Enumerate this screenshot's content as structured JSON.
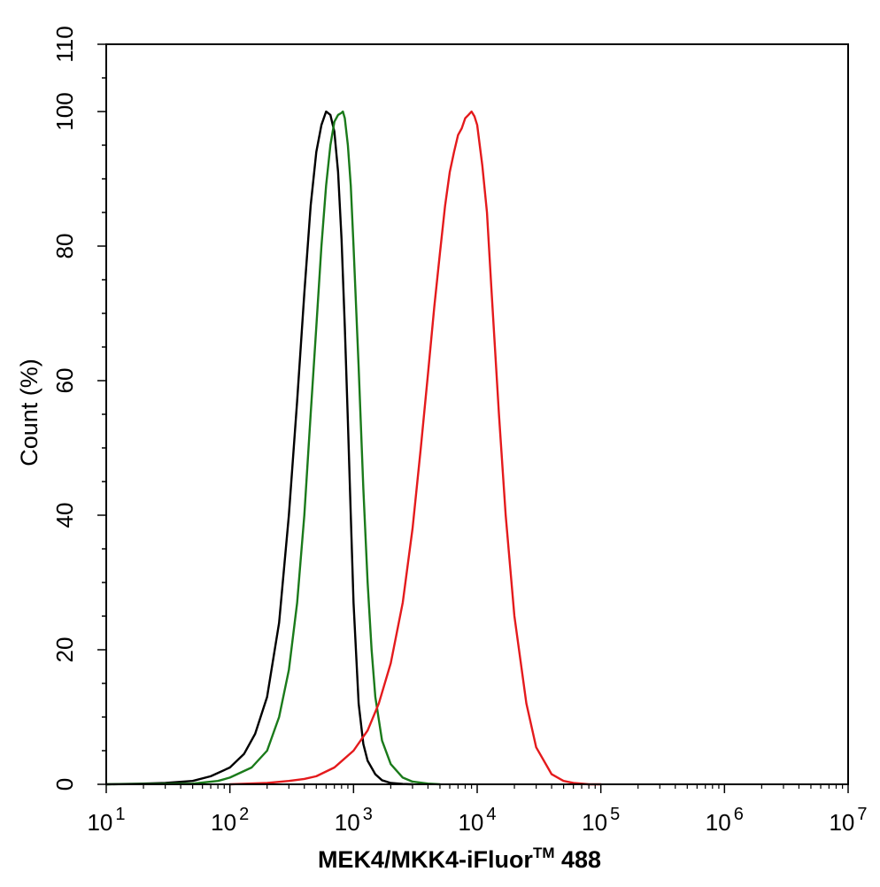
{
  "chart_data": {
    "type": "line",
    "title": "",
    "xlabel": "MEK4/MKK4-iFluor",
    "xlabel_superscript": "TM",
    "xlabel_suffix": " 488",
    "ylabel": "Count  (%)",
    "x_scale": "log",
    "xlim": [
      10,
      10000000
    ],
    "ylim": [
      0,
      110
    ],
    "grid": false,
    "legend": "none",
    "x_ticks": [
      {
        "base": "10",
        "exp": "1"
      },
      {
        "base": "10",
        "exp": "2"
      },
      {
        "base": "10",
        "exp": "3"
      },
      {
        "base": "10",
        "exp": "4"
      },
      {
        "base": "10",
        "exp": "5"
      },
      {
        "base": "10",
        "exp": "6"
      },
      {
        "base": "10",
        "exp": "7"
      }
    ],
    "y_ticks": [
      "0",
      "20",
      "40",
      "60",
      "80",
      "100",
      "110"
    ],
    "series": [
      {
        "color": "#000000",
        "x": [
          10,
          20,
          30,
          50,
          70,
          100,
          130,
          160,
          200,
          250,
          300,
          350,
          400,
          450,
          500,
          550,
          600,
          650,
          700,
          750,
          800,
          850,
          900,
          950,
          1000,
          1100,
          1200,
          1300,
          1500,
          1700,
          2000,
          2500,
          3000
        ],
        "y": [
          0,
          0.1,
          0.2,
          0.5,
          1.2,
          2.5,
          4.5,
          7.5,
          13,
          24,
          40,
          57,
          73,
          86,
          94,
          98,
          100,
          99.5,
          97,
          91,
          81,
          68,
          54,
          40,
          27,
          12,
          6,
          3.5,
          1.5,
          0.6,
          0.2,
          0.05,
          0
        ]
      },
      {
        "color": "#1a7a1a",
        "x": [
          10,
          50,
          80,
          100,
          150,
          200,
          250,
          300,
          350,
          400,
          450,
          500,
          550,
          600,
          650,
          700,
          750,
          800,
          820,
          850,
          900,
          950,
          1000,
          1100,
          1200,
          1300,
          1400,
          1500,
          1700,
          2000,
          2500,
          3000,
          4000,
          5000
        ],
        "y": [
          0,
          0.1,
          0.5,
          1,
          2.5,
          5,
          10,
          17,
          27,
          40,
          55,
          68,
          80,
          89,
          95,
          98.5,
          99.5,
          99.8,
          100,
          99,
          95,
          89,
          80,
          62,
          44,
          30,
          20,
          13,
          6.5,
          3,
          1,
          0.4,
          0.1,
          0
        ]
      },
      {
        "color": "#e41a1c",
        "x": [
          100,
          200,
          300,
          400,
          500,
          700,
          1000,
          1300,
          1600,
          2000,
          2500,
          3000,
          3500,
          4000,
          4500,
          5000,
          5500,
          6000,
          6500,
          7000,
          7500,
          8000,
          8500,
          9000,
          9500,
          10000,
          11000,
          12000,
          13000,
          15000,
          17000,
          20000,
          25000,
          30000,
          40000,
          50000,
          60000,
          80000,
          100000
        ],
        "y": [
          0,
          0.2,
          0.5,
          0.8,
          1.2,
          2.5,
          5,
          8,
          12,
          18,
          27,
          38,
          50,
          61,
          71,
          79,
          86,
          91,
          94,
          96.5,
          97.5,
          99,
          99.5,
          100,
          99.3,
          98,
          92,
          85,
          74,
          55,
          40,
          25,
          12,
          5.5,
          1.5,
          0.5,
          0.2,
          0,
          0
        ]
      }
    ]
  }
}
